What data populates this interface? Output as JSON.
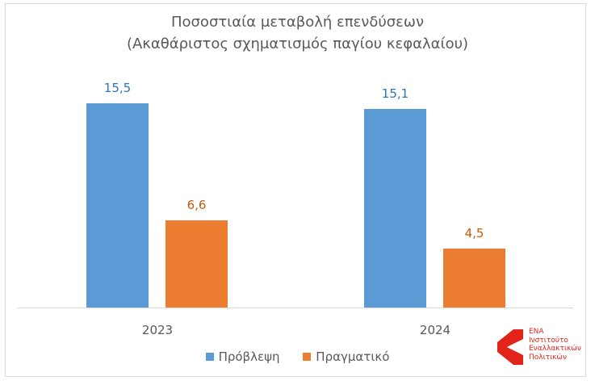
{
  "chart_data": {
    "type": "bar",
    "title": "Ποσοστιαία μεταβολή επενδύσεων",
    "subtitle": "(Ακαθάριστος σχηματισμός παγίου κεφαλαίου)",
    "categories": [
      "2023",
      "2024"
    ],
    "series": [
      {
        "name": "Πρόβλεψη",
        "color": "#5b9bd5",
        "values": [
          15.5,
          15.1
        ],
        "labels": [
          "15,5",
          "15,1"
        ]
      },
      {
        "name": "Πραγματικό",
        "color": "#ed7d31",
        "values": [
          6.6,
          4.5
        ],
        "labels": [
          "6,6",
          "4,5"
        ]
      }
    ],
    "xlabel": "",
    "ylabel": "",
    "ylim": [
      0,
      17
    ],
    "grid": false,
    "legend_position": "bottom",
    "data_labels": true
  },
  "header": {
    "title_line1": "Ποσοστιαία μεταβολή επενδύσεων",
    "title_line2": "(Ακαθάριστος σχηματισμός παγίου κεφαλαίου)"
  },
  "legend": {
    "items": [
      {
        "label": "Πρόβλεψη",
        "color": "#5b9bd5"
      },
      {
        "label": "Πραγματικό",
        "color": "#ed7d31"
      }
    ]
  },
  "logo": {
    "line1": "ΕΝΑ",
    "line2": "Ινστιτούτο",
    "line3": "Εναλλακτικών",
    "line4": "Πολιτικών",
    "color": "#e2231a"
  }
}
